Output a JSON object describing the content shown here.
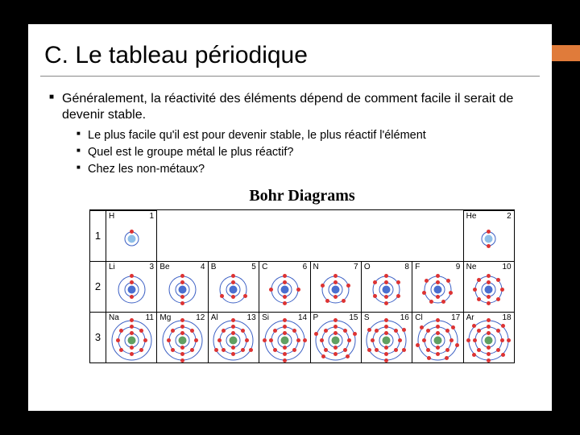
{
  "accent_color": "#e07b3a",
  "title": "C. Le tableau périodique",
  "bullets_lvl1": [
    "Généralement, la réactivité des éléments dépend de comment facile il serait de devenir stable."
  ],
  "bullets_lvl2": [
    "Le plus facile qu'il est pour devenir stable, le plus réactif l'élément",
    "Quel est le groupe métal le plus réactif?",
    "Chez les non-métaux?"
  ],
  "figure": {
    "title": "Bohr Diagrams",
    "row_labels": [
      "1",
      "2",
      "3"
    ],
    "gap_after_col": 2,
    "nucleus_colors": {
      "1": "#8fbfe8",
      "2": "#4a6fd0",
      "3": "#5fa062"
    },
    "shell_color": "#3b5fc4",
    "electron_color": "#d33",
    "elements": [
      [
        {
          "sym": "H",
          "num": 1,
          "shells": [
            1
          ]
        },
        null,
        null,
        null,
        null,
        null,
        null,
        {
          "sym": "He",
          "num": 2,
          "shells": [
            2
          ]
        }
      ],
      [
        {
          "sym": "Li",
          "num": 3,
          "shells": [
            2,
            1
          ]
        },
        {
          "sym": "Be",
          "num": 4,
          "shells": [
            2,
            2
          ]
        },
        {
          "sym": "B",
          "num": 5,
          "shells": [
            2,
            3
          ]
        },
        {
          "sym": "C",
          "num": 6,
          "shells": [
            2,
            4
          ]
        },
        {
          "sym": "N",
          "num": 7,
          "shells": [
            2,
            5
          ]
        },
        {
          "sym": "O",
          "num": 8,
          "shells": [
            2,
            6
          ]
        },
        {
          "sym": "F",
          "num": 9,
          "shells": [
            2,
            7
          ]
        },
        {
          "sym": "Ne",
          "num": 10,
          "shells": [
            2,
            8
          ]
        }
      ],
      [
        {
          "sym": "Na",
          "num": 11,
          "shells": [
            2,
            8,
            1
          ]
        },
        {
          "sym": "Mg",
          "num": 12,
          "shells": [
            2,
            8,
            2
          ]
        },
        {
          "sym": "Al",
          "num": 13,
          "shells": [
            2,
            8,
            3
          ]
        },
        {
          "sym": "Si",
          "num": 14,
          "shells": [
            2,
            8,
            4
          ]
        },
        {
          "sym": "P",
          "num": 15,
          "shells": [
            2,
            8,
            5
          ]
        },
        {
          "sym": "S",
          "num": 16,
          "shells": [
            2,
            8,
            6
          ]
        },
        {
          "sym": "Cl",
          "num": 17,
          "shells": [
            2,
            8,
            7
          ]
        },
        {
          "sym": "Ar",
          "num": 18,
          "shells": [
            2,
            8,
            8
          ]
        }
      ]
    ]
  }
}
